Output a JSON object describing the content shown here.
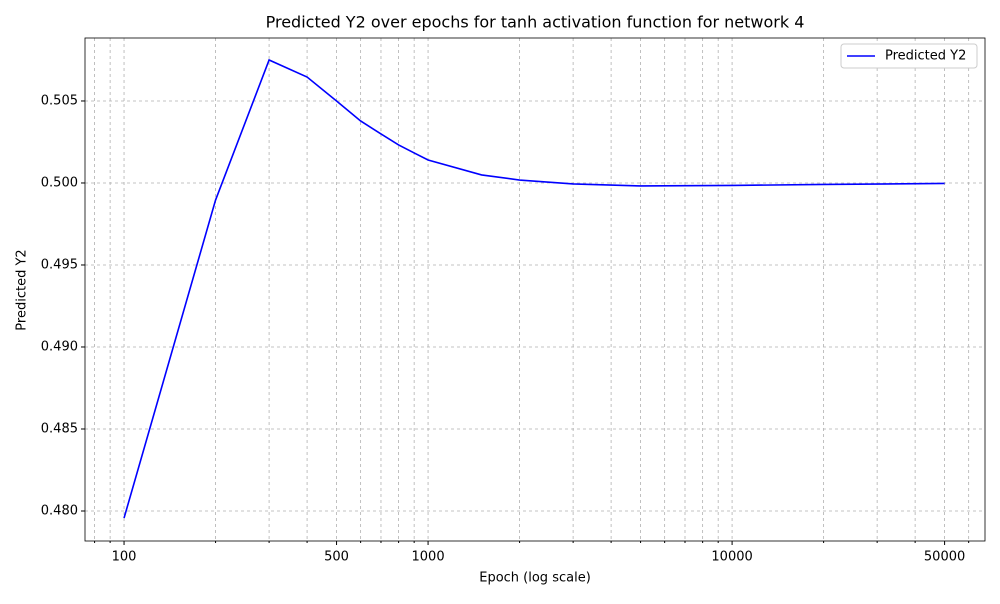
{
  "chart_data": {
    "type": "line",
    "title": "Predicted Y2 over epochs for tanh activation function for network 4",
    "x_label": "Epoch (log scale)",
    "y_label": "Predicted Y2",
    "x_scale": "log",
    "grid": true,
    "legend_position": "upper right",
    "x": [
      100,
      200,
      300,
      400,
      500,
      600,
      700,
      800,
      900,
      1000,
      1500,
      2000,
      3000,
      5000,
      10000,
      20000,
      50000
    ],
    "series": [
      {
        "name": "Predicted Y2",
        "color": "#0000ff",
        "values": [
          0.47957,
          0.49896,
          0.5075,
          0.50646,
          0.505,
          0.50378,
          0.50299,
          0.50232,
          0.50183,
          0.5014,
          0.50049,
          0.50018,
          0.49994,
          0.49982,
          0.49985,
          0.49991,
          0.49997
        ]
      }
    ],
    "xlim": [
      74.4,
      67900
    ],
    "xticks": [
      100,
      500,
      1000,
      10000,
      50000
    ],
    "xminorticks": [
      80,
      90,
      200,
      300,
      400,
      600,
      700,
      800,
      900,
      2000,
      3000,
      4000,
      5000,
      6000,
      7000,
      8000,
      9000,
      20000,
      30000,
      40000,
      60000
    ],
    "ylim": [
      0.47817,
      0.50884
    ],
    "yticks": [
      {
        "value": 0.48,
        "label": "0.480"
      },
      0.485,
      {
        "value": 0.49,
        "label": "0.490"
      },
      0.495,
      {
        "value": 0.5,
        "label": "0.500"
      },
      0.505
    ]
  }
}
